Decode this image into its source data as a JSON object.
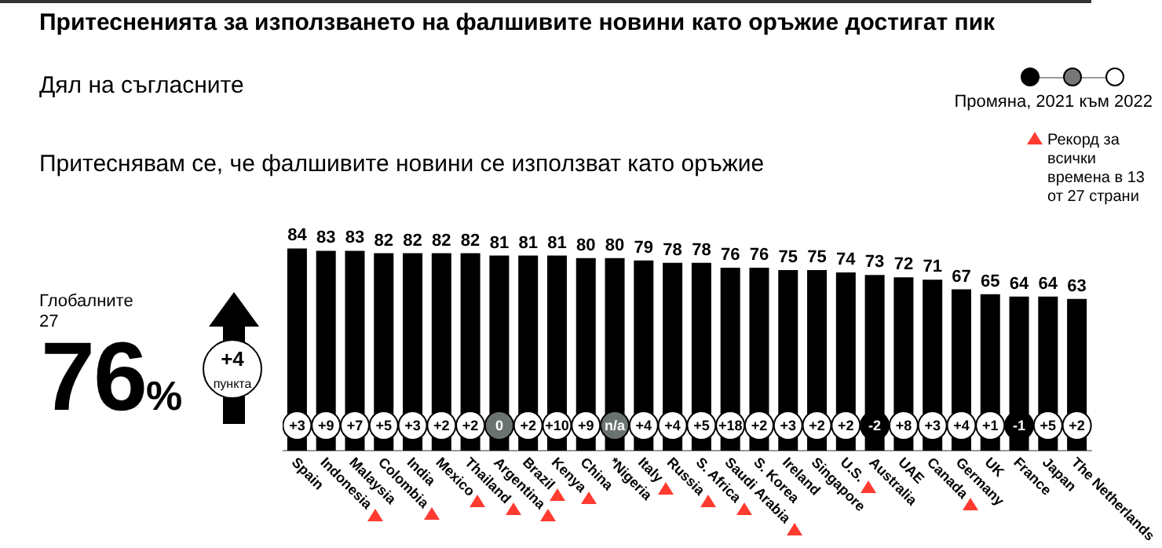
{
  "chart_data": {
    "type": "bar",
    "title": "Притесненията за използването на фалшивите новини като оръжие достигат пик",
    "subtitle": "Притеснявам се, че фалшивите новини се използват като оръжие",
    "categories": [
      "Spain",
      "Indonesia",
      "Malaysia",
      "Colombia",
      "India",
      "Mexico",
      "Thailand",
      "Argentina",
      "Brazil",
      "Kenya",
      "China",
      "*Nigeria",
      "Italy",
      "Russia",
      "S. Africa",
      "Saudi Arabia",
      "S. Korea",
      "Ireland",
      "Singapore",
      "U.S.",
      "Australia",
      "UAE",
      "Canada",
      "Germany",
      "UK",
      "France",
      "Japan",
      "The Netherlands"
    ],
    "series": [
      {
        "color": "#000000",
        "values": [
          84,
          83,
          83,
          82,
          82,
          82,
          82,
          81,
          81,
          81,
          80,
          80,
          79,
          78,
          78,
          76,
          76,
          75,
          75,
          74,
          73,
          72,
          71,
          67,
          65,
          64,
          64,
          63
        ]
      },
      {
        "type": "scatter",
        "name": "Рекорд за всички времена в 13 от 27 страни",
        "color": "#ff3b30",
        "marker": "triangle",
        "x": [
          "Indonesia",
          "Colombia",
          "Mexico",
          "Thailand",
          "Argentina",
          "Brazil",
          "Kenya",
          "Italy",
          "Russia",
          "S. Africa",
          "Saudi Arabia",
          "U.S.",
          "Canada"
        ],
        "values": [
          null,
          null,
          null,
          null,
          null,
          null,
          null,
          null,
          null,
          null,
          null,
          null,
          null
        ]
      }
    ],
    "data_labels": true,
    "grid": false,
    "annotations": [
      "Дял на съгласните",
      "Промяна, 2021 към 2022",
      "Глобалните 27",
      "76%",
      "+4 пункта",
      {
        "text": "+3",
        "x": "Spain"
      },
      {
        "text": "+9",
        "x": "Indonesia"
      },
      {
        "text": "+7",
        "x": "Malaysia"
      },
      {
        "text": "+5",
        "x": "Colombia"
      },
      {
        "text": "+3",
        "x": "India"
      },
      {
        "text": "+2",
        "x": "Mexico"
      },
      {
        "text": "+2",
        "x": "Thailand"
      },
      {
        "text": "0",
        "x": "Argentina"
      },
      {
        "text": "+2",
        "x": "Brazil"
      },
      {
        "text": "+10",
        "x": "Kenya"
      },
      {
        "text": "+9",
        "x": "China"
      },
      {
        "text": "n/a",
        "x": "*Nigeria"
      },
      {
        "text": "+4",
        "x": "Italy"
      },
      {
        "text": "+4",
        "x": "Russia"
      },
      {
        "text": "+5",
        "x": "S. Africa"
      },
      {
        "text": "+18",
        "x": "Saudi Arabia"
      },
      {
        "text": "+2",
        "x": "S. Korea"
      },
      {
        "text": "+3",
        "x": "Ireland"
      },
      {
        "text": "+2",
        "x": "Singapore"
      },
      {
        "text": "+2",
        "x": "U.S."
      },
      {
        "text": "-2",
        "x": "Australia"
      },
      {
        "text": "+8",
        "x": "UAE"
      },
      {
        "text": "+3",
        "x": "Canada"
      },
      {
        "text": "+4",
        "x": "Germany"
      },
      {
        "text": "+1",
        "x": "UK"
      },
      {
        "text": "-1",
        "x": "France"
      },
      {
        "text": "+5",
        "x": "Japan"
      },
      {
        "text": "+2",
        "x": "The Netherlands"
      }
    ]
  }
}
